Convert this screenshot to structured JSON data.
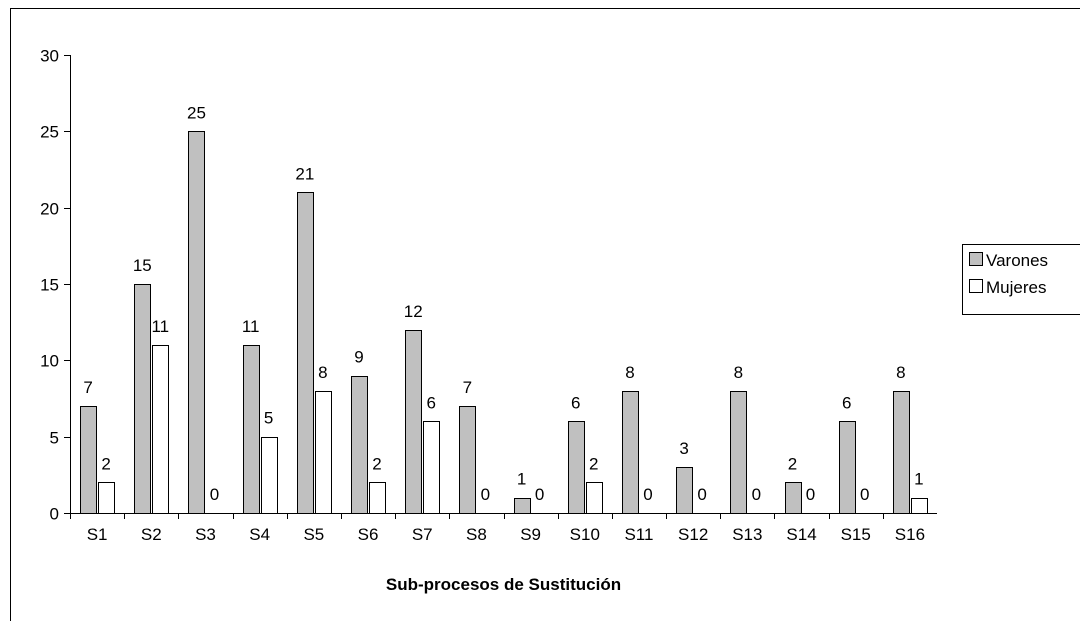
{
  "chart_data": {
    "type": "bar",
    "xlabel": "Sub-procesos de Sustitución",
    "ylabel": "",
    "ylim": [
      0,
      30
    ],
    "yticks": [
      0,
      5,
      10,
      15,
      20,
      25,
      30
    ],
    "grid": false,
    "legend_position": "right",
    "categories": [
      "S1",
      "S2",
      "S3",
      "S4",
      "S5",
      "S6",
      "S7",
      "S8",
      "S9",
      "S10",
      "S11",
      "S12",
      "S13",
      "S14",
      "S15",
      "S16"
    ],
    "series": [
      {
        "name": "Varones",
        "color": "#c0c0c0",
        "values": [
          7,
          15,
          25,
          11,
          21,
          9,
          12,
          7,
          1,
          6,
          8,
          3,
          8,
          2,
          6,
          8
        ]
      },
      {
        "name": "Mujeres",
        "color": "#ffffff",
        "values": [
          2,
          11,
          0,
          5,
          8,
          2,
          6,
          0,
          0,
          2,
          0,
          0,
          0,
          0,
          0,
          1
        ]
      }
    ]
  }
}
